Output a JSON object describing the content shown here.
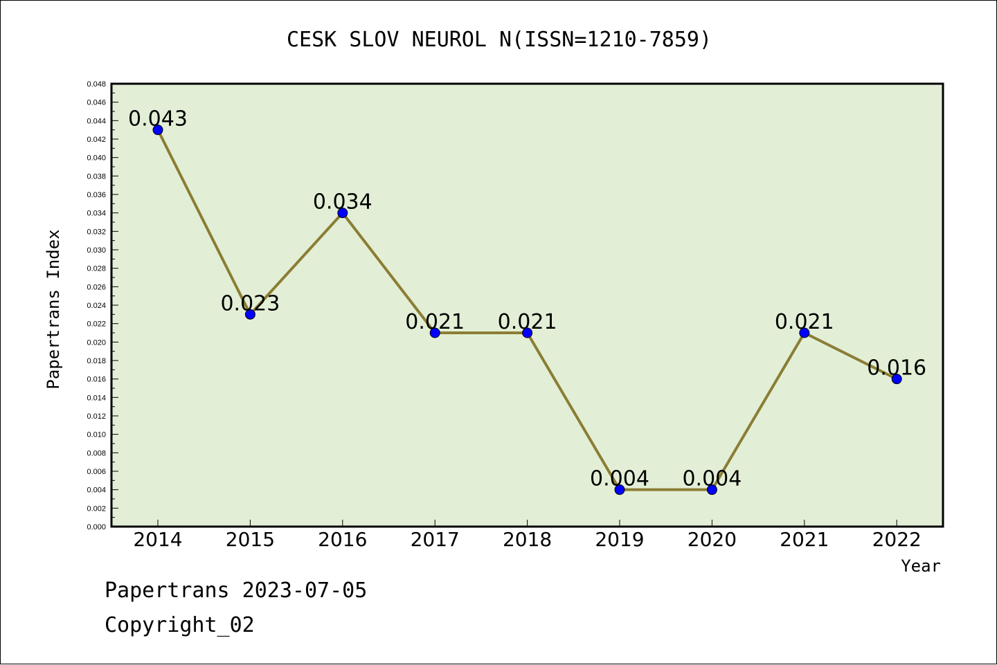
{
  "footer": {
    "line1": "Papertrans 2023-07-05",
    "line2": "Copyright_02"
  },
  "colors": {
    "plot_background": "#e2efd6",
    "line": "#8b7d34",
    "marker": "#0000ff"
  },
  "chart_data": {
    "type": "line",
    "title": "CESK SLOV NEUROL N(ISSN=1210-7859)",
    "xlabel": "Year",
    "ylabel": "Papertrans Index",
    "categories": [
      "2014",
      "2015",
      "2016",
      "2017",
      "2018",
      "2019",
      "2020",
      "2021",
      "2022"
    ],
    "values": [
      0.043,
      0.023,
      0.034,
      0.021,
      0.021,
      0.004,
      0.004,
      0.021,
      0.016
    ],
    "data_labels": [
      "0.043",
      "0.023",
      "0.034",
      "0.021",
      "0.021",
      "0.004",
      "0.004",
      "0.021",
      "0.016"
    ],
    "ylim": [
      0,
      0.048
    ],
    "yticks": [
      "0.000",
      "0.002",
      "0.004",
      "0.006",
      "0.008",
      "0.010",
      "0.012",
      "0.014",
      "0.016",
      "0.018",
      "0.020",
      "0.022",
      "0.024",
      "0.026",
      "0.028",
      "0.030",
      "0.032",
      "0.034",
      "0.036",
      "0.038",
      "0.040",
      "0.042",
      "0.044",
      "0.046",
      "0.048"
    ],
    "grid": false,
    "legend": "none"
  }
}
